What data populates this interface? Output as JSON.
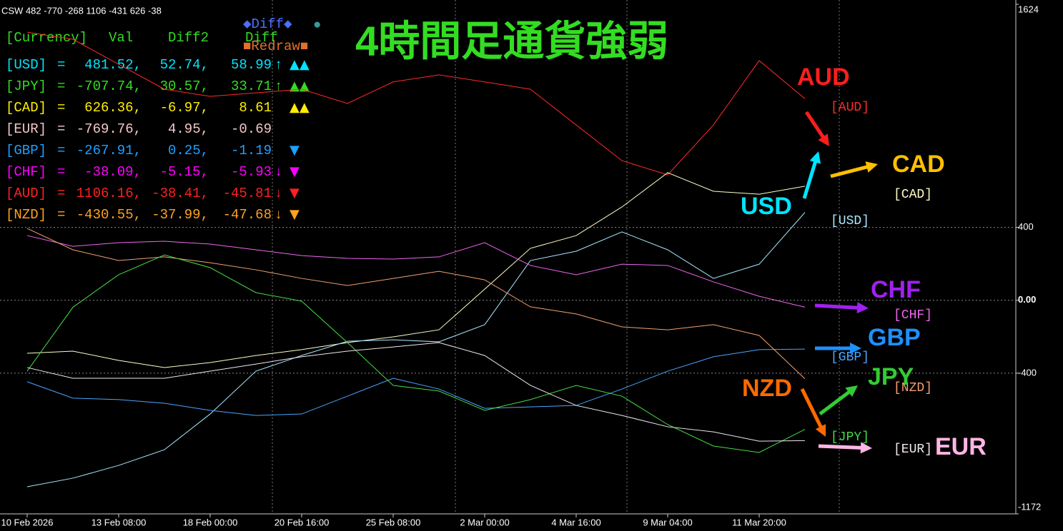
{
  "chart_data": {
    "type": "line",
    "header": "CSW 482 -770 -268 1106 -431 626 -38",
    "title": "4時間足通貨強弱",
    "categories": [
      "10 Feb 2026",
      null,
      "13 Feb 08:00",
      null,
      "18 Feb 00:00",
      null,
      "20 Feb 16:00",
      null,
      "25 Feb 08:00",
      null,
      "2 Mar 00:00",
      null,
      "4 Mar 16:00",
      null,
      "9 Mar 04:00",
      null,
      "11 Mar 20:00",
      null
    ],
    "series": [
      {
        "name": "[AUD]",
        "color": "#ff2a2a",
        "values": [
          1471,
          1432,
          1295,
          1158,
          1119,
          1138,
          1158,
          1080,
          1198,
          1237,
          1198,
          1158,
          962,
          766,
          688,
          962,
          1315,
          1106
        ]
      },
      {
        "name": "[CAD]",
        "color": "#ffffc8",
        "values": [
          -291,
          -279,
          -330,
          -369,
          -342,
          -303,
          -271,
          -232,
          -201,
          -162,
          61,
          285,
          355,
          512,
          700,
          598,
          582,
          626
        ]
      },
      {
        "name": "[USD]",
        "color": "#a8e8ff",
        "values": [
          -1023,
          -976,
          -906,
          -820,
          -624,
          -389,
          -303,
          -225,
          -217,
          -228,
          -134,
          218,
          269,
          375,
          277,
          120,
          198,
          482
        ]
      },
      {
        "name": "[CHF]",
        "color": "#ee66ee",
        "values": [
          355,
          296,
          316,
          324,
          308,
          277,
          245,
          230,
          226,
          238,
          316,
          191,
          140,
          198,
          191,
          101,
          22,
          -38
        ]
      },
      {
        "name": "[GBP]",
        "color": "#4aa6ff",
        "values": [
          -447,
          -537,
          -545,
          -565,
          -604,
          -632,
          -624,
          -526,
          -428,
          -487,
          -593,
          -585,
          -577,
          -487,
          -389,
          -310,
          -271,
          -268
        ]
      },
      {
        "name": "[NZD]",
        "color": "#f4a070",
        "values": [
          394,
          277,
          218,
          238,
          206,
          167,
          120,
          81,
          120,
          159,
          112,
          -36,
          -75,
          -146,
          -162,
          -134,
          -193,
          -431
        ]
      },
      {
        "name": "[JPY]",
        "color": "#44dd44",
        "values": [
          -389,
          -38,
          140,
          249,
          179,
          42,
          -5,
          -232,
          -467,
          -498,
          -604,
          -545,
          -467,
          -526,
          -682,
          -800,
          -835,
          -708
        ]
      },
      {
        "name": "[EUR]",
        "color": "#f0e8f0",
        "values": [
          -369,
          -428,
          -428,
          -428,
          -389,
          -350,
          -310,
          -279,
          -256,
          -232,
          -303,
          -467,
          -577,
          -632,
          -694,
          -722,
          -773,
          -770
        ]
      }
    ],
    "ylim": [
      -1172,
      1624
    ],
    "yticks": [
      1624,
      400,
      {
        "value": 0,
        "label": "0.00"
      },
      -400,
      -1172
    ],
    "grid": true,
    "annotations": [
      {
        "text": "AUD",
        "color": "#ff1e1e"
      },
      {
        "text": "CAD",
        "color": "#ffc000"
      },
      {
        "text": "USD",
        "color": "#00e5ff"
      },
      {
        "text": "CHF",
        "color": "#a020f0"
      },
      {
        "text": "GBP",
        "color": "#1e8fff"
      },
      {
        "text": "NZD",
        "color": "#ff6a00"
      },
      {
        "text": "JPY",
        "color": "#33cc33"
      },
      {
        "text": "EUR",
        "color": "#ffb6e6"
      }
    ]
  },
  "indicator_table": {
    "header": {
      "currency": "[Currency]",
      "val": "Val",
      "diff2": "Diff2",
      "diff": "Diff",
      "diff_button": "◆Diff◆",
      "dot": "●",
      "redraw": "■Redraw■"
    },
    "rows": [
      {
        "name": "[USD]",
        "eq": "=",
        "val": "481.52,",
        "diff2": "52.74,",
        "diff": "58.99",
        "arrow": "↑",
        "signal": "▲▲",
        "color": "#00e5ff"
      },
      {
        "name": "[JPY]",
        "eq": "=",
        "val": "-707.74,",
        "diff2": "30.57,",
        "diff": "33.71",
        "arrow": "↑",
        "signal": "▲▲",
        "color": "#33dd22"
      },
      {
        "name": "[CAD]",
        "eq": "=",
        "val": "626.36,",
        "diff2": "-6.97,",
        "diff": "8.61",
        "signal": "▲▲",
        "color": "#ffee00"
      },
      {
        "name": "[EUR]",
        "eq": "=",
        "val": "-769.76,",
        "diff2": "4.95,",
        "diff": "-0.69",
        "color": "#f4c6c6"
      },
      {
        "name": "[GBP]",
        "eq": "=",
        "val": "-267.91,",
        "diff2": "0.25,",
        "diff": "-1.19",
        "signal": "▼",
        "color": "#1ea0ff"
      },
      {
        "name": "[CHF]",
        "eq": "=",
        "val": "-38.09,",
        "diff2": "-5.15,",
        "diff": "-5.93",
        "arrow": "↓",
        "signal": "▼",
        "color": "#ff00ff"
      },
      {
        "name": "[AUD]",
        "eq": "=",
        "val": "1106.16,",
        "diff2": "-38.41,",
        "diff": "-45.81",
        "arrow": "↓",
        "signal": "▼",
        "color": "#ff2020"
      },
      {
        "name": "[NZD]",
        "eq": "=",
        "val": "-430.55,",
        "diff2": "-37.99,",
        "diff": "-47.68",
        "arrow": "↓",
        "signal": "▼",
        "color": "#ffa020"
      }
    ]
  }
}
